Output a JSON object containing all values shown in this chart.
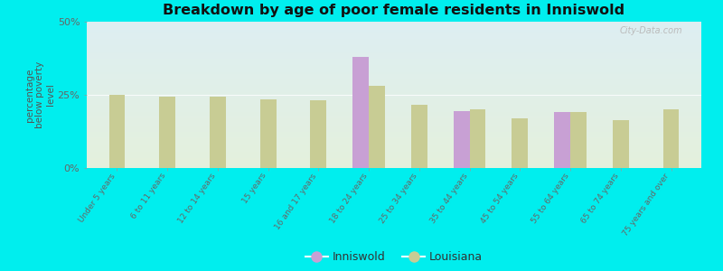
{
  "title": "Breakdown by age of poor female residents in Inniswold",
  "ylabel": "percentage\nbelow poverty\nlevel",
  "categories": [
    "Under 5 years",
    "6 to 11 years",
    "12 to 14 years",
    "15 years",
    "16 and 17 years",
    "18 to 24 years",
    "25 to 34 years",
    "35 to 44 years",
    "45 to 54 years",
    "55 to 64 years",
    "65 to 74 years",
    "75 years and over"
  ],
  "inniswold_values": [
    null,
    null,
    null,
    null,
    null,
    38.0,
    null,
    19.5,
    null,
    19.0,
    null,
    null
  ],
  "louisiana_values": [
    25.0,
    24.5,
    24.5,
    23.5,
    23.0,
    28.0,
    21.5,
    20.0,
    17.0,
    19.0,
    16.5,
    20.0
  ],
  "inniswold_color": "#c8a0d4",
  "louisiana_color": "#c8cc94",
  "background_color": "#00eeee",
  "plot_bg_top": "#ddeef2",
  "plot_bg_bottom": "#e4f0dc",
  "ylim": [
    0,
    50
  ],
  "ytick_labels": [
    "0%",
    "25%",
    "50%"
  ],
  "watermark": "City-Data.com",
  "bar_width": 0.32
}
